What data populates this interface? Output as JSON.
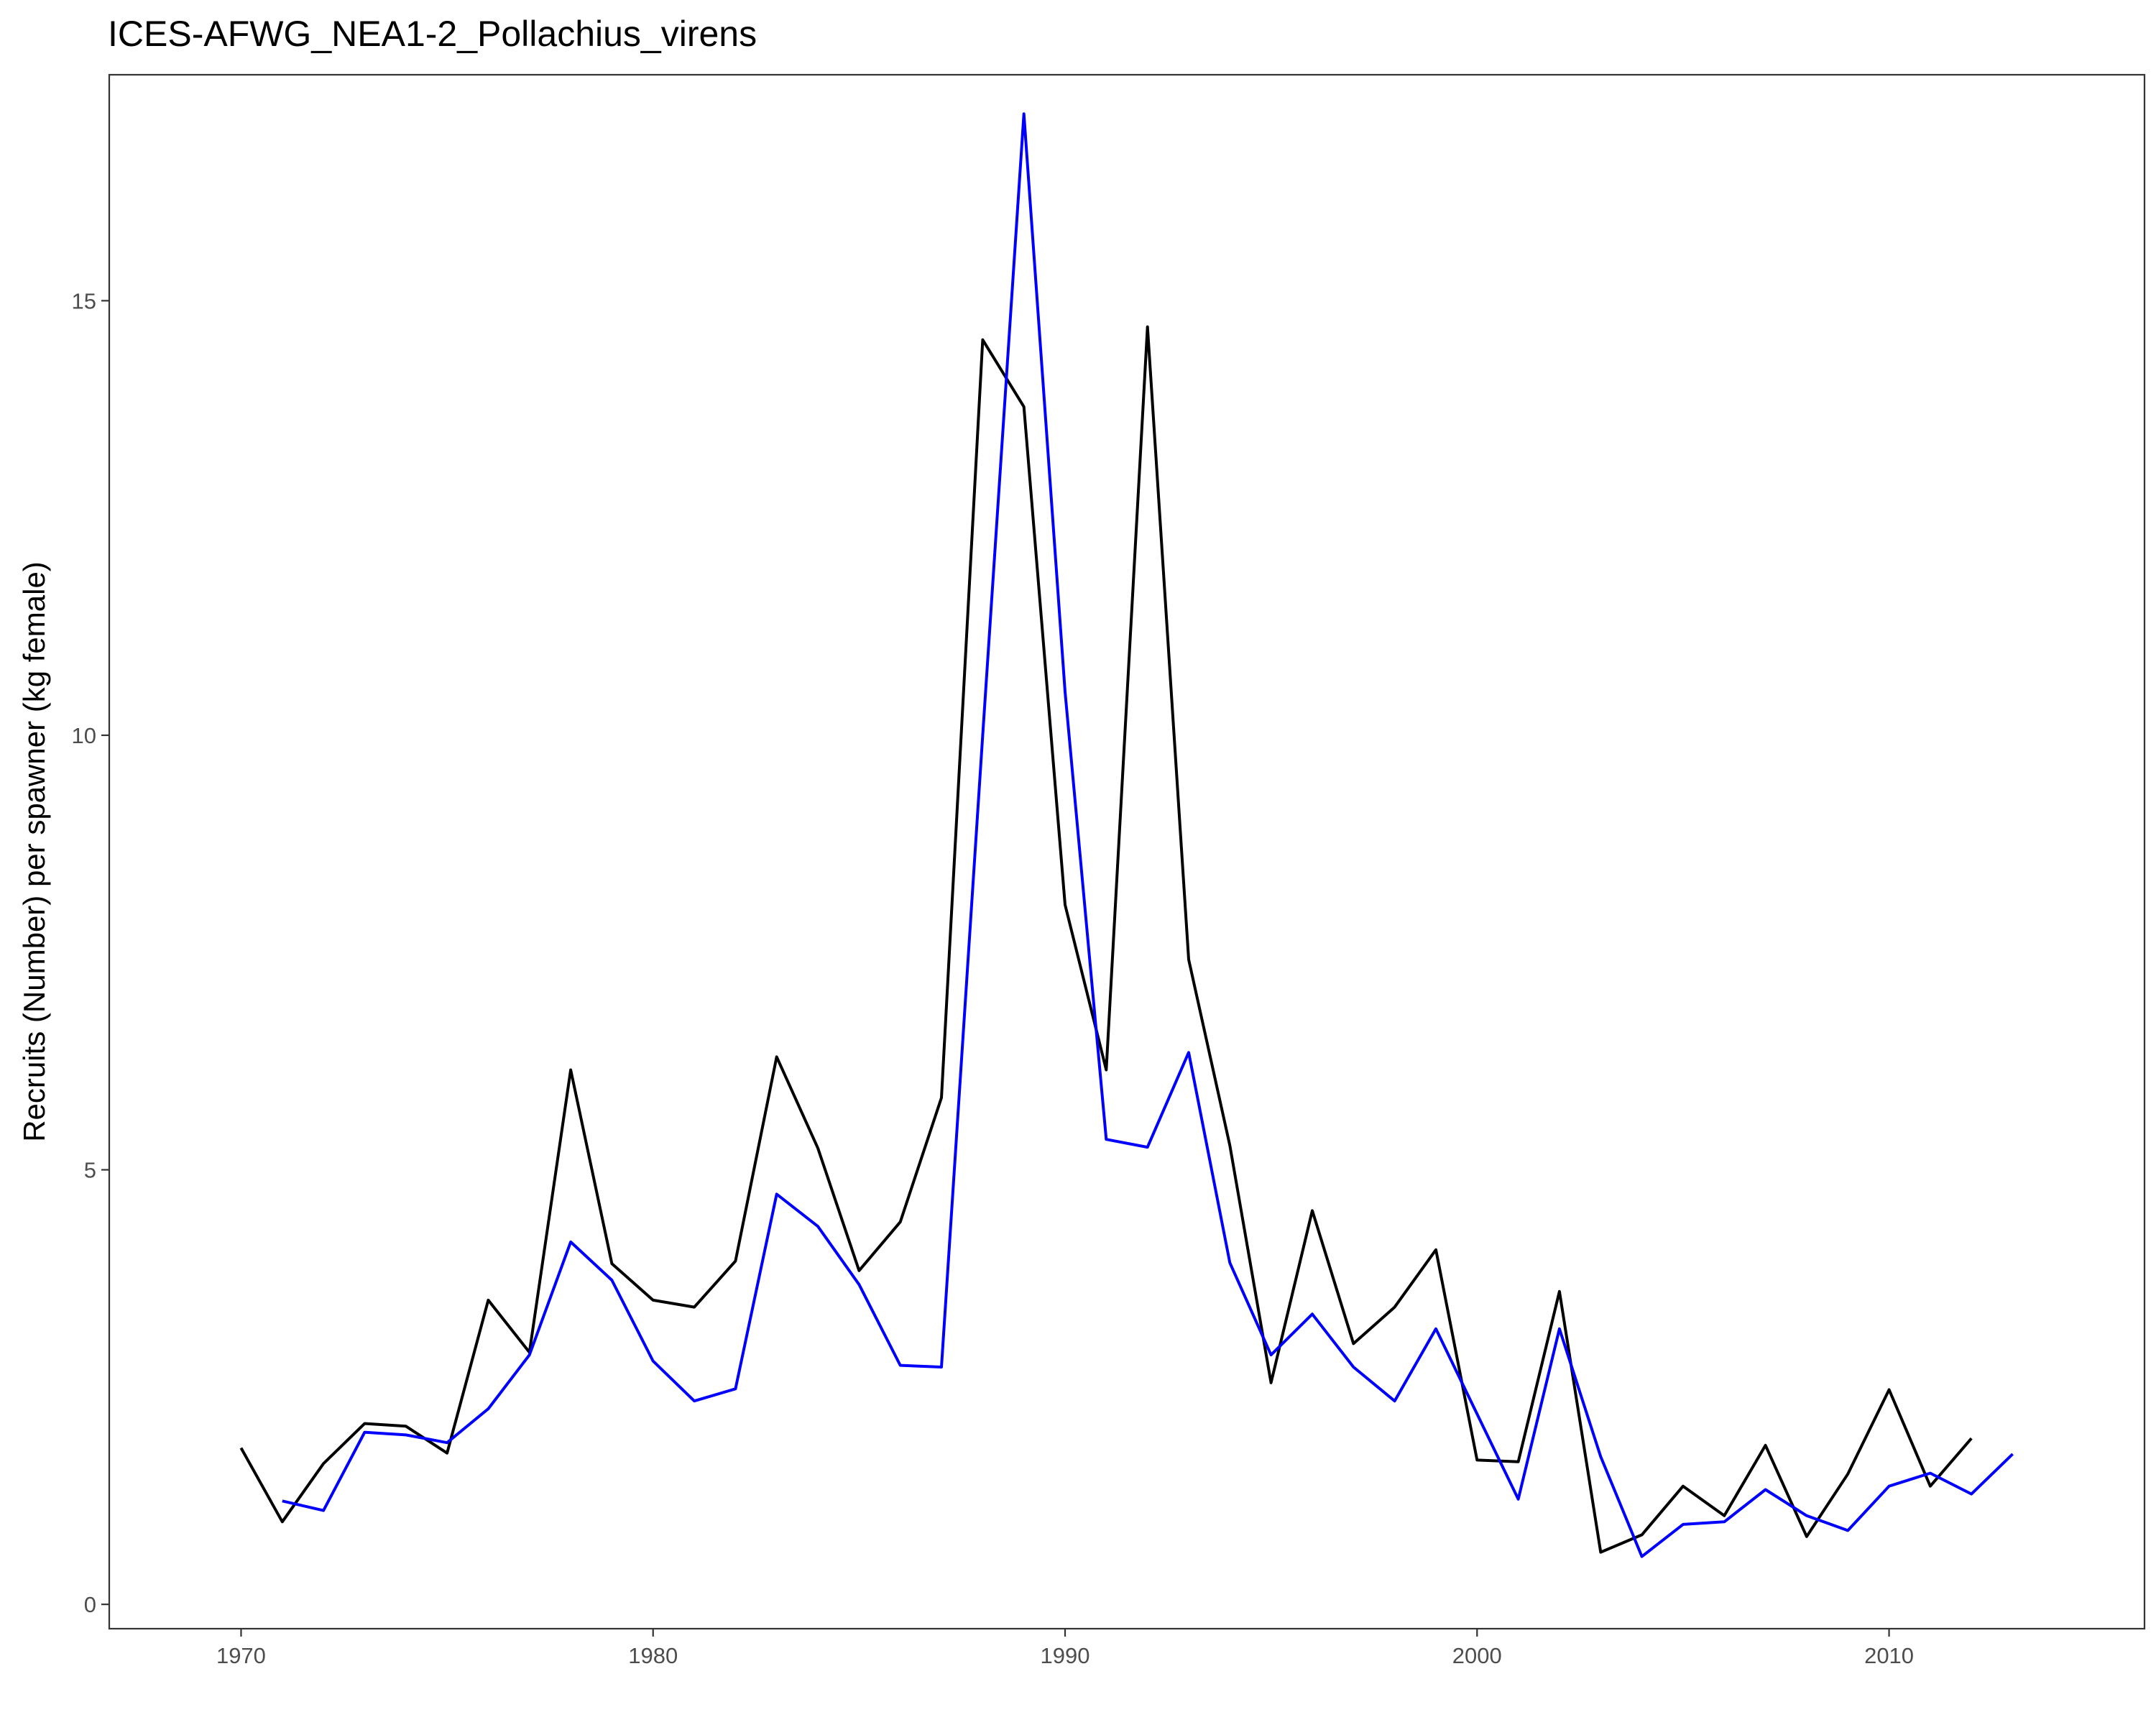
{
  "chart_data": {
    "type": "line",
    "title": "ICES-AFWG_NEA1-2_Pollachius_virens",
    "xlabel": "",
    "ylabel": "Recruits (Number) per spawner (kg female)",
    "xlim": [
      1966.8,
      2016.2
    ],
    "ylim": [
      -0.28,
      17.6
    ],
    "x_ticks": [
      1970,
      1980,
      1990,
      2000,
      2010
    ],
    "y_ticks": [
      0,
      5,
      10,
      15
    ],
    "x_tick_labels": [
      "1970",
      "1980",
      "1990",
      "2000",
      "2010"
    ],
    "y_tick_labels": [
      "0",
      "5",
      "10",
      "15"
    ],
    "grid": false,
    "legend": "none",
    "series": [
      {
        "color": "#000000",
        "x": [
          1970,
          1971,
          1972,
          1973,
          1974,
          1975,
          1976,
          1977,
          1978,
          1979,
          1980,
          1981,
          1982,
          1983,
          1984,
          1985,
          1986,
          1987,
          1988,
          1989,
          1990,
          1991,
          1992,
          1993,
          1994,
          1995,
          1996,
          1997,
          1998,
          1999,
          2000,
          2001,
          2002,
          2003,
          2004,
          2005,
          2006,
          2007,
          2008,
          2009,
          2010,
          2011,
          2012
        ],
        "y": [
          1.8,
          0.95,
          1.62,
          2.08,
          2.05,
          1.74,
          3.5,
          2.9,
          6.15,
          3.92,
          3.5,
          3.42,
          3.95,
          6.3,
          5.25,
          3.84,
          4.4,
          5.83,
          14.55,
          13.78,
          8.05,
          6.15,
          14.7,
          7.42,
          5.28,
          2.55,
          4.53,
          3.0,
          3.42,
          4.08,
          1.66,
          1.64,
          3.6,
          0.6,
          0.8,
          1.36,
          1.02,
          1.83,
          0.78,
          1.5,
          2.47,
          1.36,
          1.91
        ]
      },
      {
        "color": "#0000ff",
        "x": [
          1971,
          1972,
          1973,
          1974,
          1975,
          1976,
          1977,
          1978,
          1979,
          1980,
          1981,
          1982,
          1983,
          1984,
          1985,
          1986,
          1987,
          1988,
          1989,
          1990,
          1991,
          1992,
          1993,
          1994,
          1995,
          1996,
          1997,
          1998,
          1999,
          2000,
          2001,
          2002,
          2003,
          2004,
          2005,
          2006,
          2007,
          2008,
          2009,
          2010,
          2011,
          2012,
          2013
        ],
        "y": [
          1.19,
          1.08,
          1.98,
          1.95,
          1.86,
          2.25,
          2.87,
          4.17,
          3.73,
          2.8,
          2.34,
          2.48,
          4.72,
          4.35,
          3.68,
          2.75,
          2.73,
          10.0,
          17.15,
          10.5,
          5.35,
          5.26,
          6.35,
          3.93,
          2.87,
          3.34,
          2.73,
          2.34,
          3.17,
          2.19,
          1.21,
          3.17,
          1.7,
          0.55,
          0.92,
          0.95,
          1.32,
          1.02,
          0.85,
          1.36,
          1.51,
          1.27,
          1.73
        ]
      }
    ]
  }
}
